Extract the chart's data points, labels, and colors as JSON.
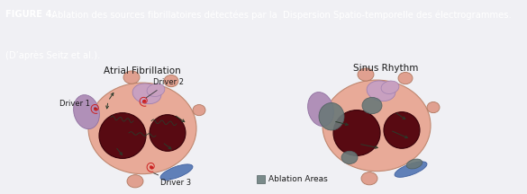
{
  "figure_width": 5.85,
  "figure_height": 2.16,
  "dpi": 100,
  "header_bg_color": "#8b93b8",
  "header_text_bold": "FIGURE 4.",
  "header_text_normal": " Ablation des sources fibrillatoires détectées par la  Dispersion Spatio-temporelle des électrogrammes.",
  "header_text_line2": "(D’après Seitz et al.).",
  "header_text_color": "#ffffff",
  "body_bg_color": "#f0f0f4",
  "left_title": "Atrial Fibrillation",
  "right_title": "Sinus Rhythm",
  "driver1_label": "Driver 1",
  "driver2_label": "Driver 2",
  "driver3_label": "Driver 3",
  "legend_color": "#7a8a8a",
  "heart_skin_color": "#e8aa98",
  "heart_dark_color": "#580a12",
  "heart_ablation_color": "#6a7878",
  "heart_purple_color": "#b090b8",
  "heart_purple2_color": "#c8a0c0",
  "arrow_color": "#2a3a2a",
  "driver_spiral_color": "#cc2222",
  "tube_color": "#e0a090",
  "blue_color": "#6080b8",
  "header_fontsize": 7.2,
  "title_fontsize": 7.5,
  "label_fontsize": 6.0,
  "legend_fontsize": 6.5
}
